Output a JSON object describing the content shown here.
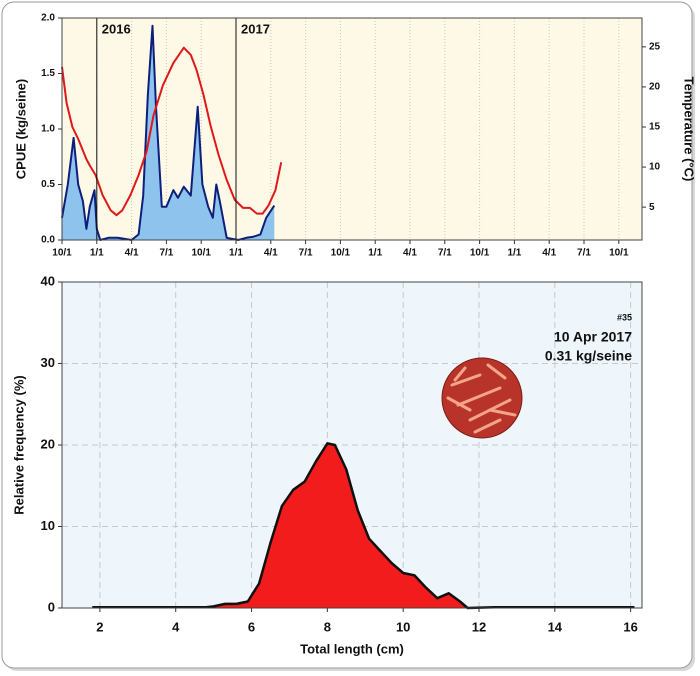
{
  "chart_data": [
    {
      "type": "line",
      "ylabel": "CPUE (kg/seine)",
      "y2label": "Temperature (°C)",
      "xlim": [
        0,
        50
      ],
      "xticks": [
        {
          "value": 0,
          "label": "10/1"
        },
        {
          "value": 3,
          "label": "1/1"
        },
        {
          "value": 6,
          "label": "4/1"
        },
        {
          "value": 9,
          "label": "7/1"
        },
        {
          "value": 12,
          "label": "10/1"
        },
        {
          "value": 15,
          "label": "1/1"
        },
        {
          "value": 18,
          "label": "4/1"
        },
        {
          "value": 21,
          "label": "7/1"
        },
        {
          "value": 24,
          "label": "10/1"
        },
        {
          "value": 27,
          "label": "1/1"
        },
        {
          "value": 30,
          "label": "4/1"
        },
        {
          "value": 33,
          "label": "7/1"
        },
        {
          "value": 36,
          "label": "10/1"
        },
        {
          "value": 39,
          "label": "1/1"
        },
        {
          "value": 42,
          "label": "4/1"
        },
        {
          "value": 45,
          "label": "7/1"
        },
        {
          "value": 48,
          "label": "10/1"
        }
      ],
      "ylim": [
        0,
        2
      ],
      "yticks": [
        {
          "value": 0,
          "label": "0.0"
        },
        0.5,
        {
          "value": 1,
          "label": "1.0"
        },
        1.5,
        {
          "value": 2,
          "label": "2.0"
        }
      ],
      "y2lim": [
        0.9,
        28.6
      ],
      "y2ticks": [
        5,
        10,
        15,
        20,
        25
      ],
      "grid": "x",
      "annotations": [
        {
          "text": "2016",
          "x": 3
        },
        {
          "text": "2017",
          "x": 15
        }
      ],
      "series": [
        {
          "color": "#0d1f7a",
          "fill": "#8ec3ee",
          "area": true,
          "axis": "y",
          "x": [
            0,
            0.5,
            1,
            1.4,
            1.8,
            2.1,
            2.4,
            2.8,
            3,
            3.3,
            4,
            4.8,
            6,
            6.6,
            7,
            7.4,
            7.8,
            8.1,
            8.6,
            9,
            9.6,
            10,
            10.5,
            11.1,
            11.7,
            12.1,
            12.6,
            13,
            13.3,
            13.6,
            14.2,
            15.2,
            15.9,
            16.5,
            17.1,
            17.6,
            18.3
          ],
          "values": [
            0.2,
            0.5,
            0.92,
            0.5,
            0.35,
            0.1,
            0.3,
            0.45,
            0.1,
            0,
            0.02,
            0.02,
            0,
            0.05,
            0.4,
            1.3,
            1.93,
            1.2,
            0.3,
            0.3,
            0.45,
            0.38,
            0.48,
            0.4,
            1.2,
            0.5,
            0.3,
            0.2,
            0.5,
            0.35,
            0.02,
            0,
            0.02,
            0.03,
            0.05,
            0.2,
            0.31
          ]
        },
        {
          "color": "#e01818",
          "area": false,
          "axis": "y2",
          "x": [
            0,
            0.4,
            0.9,
            1.4,
            2.1,
            2.4,
            2.9,
            3.5,
            4.2,
            4.7,
            5.2,
            5.9,
            6.6,
            7.3,
            7.9,
            8.7,
            9.6,
            10.5,
            11.1,
            11.6,
            12.2,
            12.8,
            13.5,
            14.2,
            14.9,
            15.6,
            16.2,
            16.8,
            17.3,
            17.8,
            18.4,
            18.9
          ],
          "values": [
            22.5,
            18,
            15,
            13.5,
            11,
            10.2,
            9,
            6.5,
            4.6,
            4,
            4.6,
            6.5,
            9,
            12,
            16.5,
            20.2,
            23,
            24.9,
            24,
            22.1,
            19,
            15.2,
            11.5,
            8.4,
            5.9,
            4.9,
            4.9,
            4.2,
            4.2,
            5.2,
            7.1,
            10.6
          ]
        }
      ]
    },
    {
      "type": "area",
      "xlabel": "Total length (cm)",
      "ylabel": "Relative frequency (%)",
      "xlim": [
        1,
        16.3
      ],
      "xticks": [
        2,
        4,
        6,
        8,
        10,
        12,
        14,
        16
      ],
      "ylim": [
        0,
        40
      ],
      "yticks": [
        0,
        10,
        20,
        30,
        40
      ],
      "grid": "both",
      "annotations": [
        "#35",
        "10 Apr 2017",
        "0.31 kg/seine"
      ],
      "series": [
        {
          "color": "#111111",
          "fill": "#f21c1c",
          "area": true,
          "axis": "y",
          "x": [
            1.8,
            4.8,
            5,
            5.3,
            5.6,
            5.9,
            6.2,
            6.5,
            6.8,
            7.1,
            7.4,
            7.7,
            8,
            8.2,
            8.5,
            8.8,
            9.1,
            9.4,
            9.7,
            10,
            10.3,
            10.6,
            10.9,
            11.2,
            11.5,
            11.7,
            12.4,
            16.1
          ],
          "values": [
            0.1,
            0.1,
            0.2,
            0.5,
            0.5,
            0.8,
            3,
            8,
            12.5,
            14.5,
            15.5,
            18,
            20.2,
            20,
            17,
            12,
            8.5,
            7,
            5.5,
            4.3,
            4,
            2.5,
            1.2,
            1.8,
            0.8,
            0,
            0.1,
            0.1
          ]
        }
      ]
    }
  ]
}
